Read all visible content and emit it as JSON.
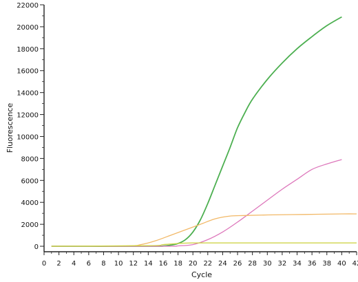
{
  "chart_data": {
    "type": "line",
    "xlabel": "Cycle",
    "ylabel": "Fluorescence",
    "xlim": [
      0,
      42
    ],
    "ylim": [
      -500,
      22000
    ],
    "x_ticks": [
      0,
      2,
      4,
      6,
      8,
      10,
      12,
      14,
      16,
      18,
      20,
      22,
      24,
      26,
      28,
      30,
      32,
      34,
      36,
      38,
      40,
      42
    ],
    "x_tick_labels": [
      "0",
      "2",
      "4",
      "6",
      "8",
      "10",
      "12",
      "14",
      "16",
      "18",
      "20",
      "22",
      "24",
      "26",
      "28",
      "30",
      "32",
      "34",
      "36",
      "38",
      "40",
      "42"
    ],
    "y_ticks": [
      0,
      2000,
      4000,
      6000,
      8000,
      10000,
      12000,
      14000,
      16000,
      18000,
      20000,
      22000
    ],
    "y_tick_labels": [
      "0",
      "2000",
      "4000",
      "6000",
      "8000",
      "10000",
      "12000",
      "14000",
      "16000",
      "18000",
      "20000",
      "22000"
    ],
    "grid": false,
    "series": [
      {
        "color": "#4caf50",
        "points": [
          [
            1,
            0
          ],
          [
            14,
            0
          ],
          [
            16,
            20
          ],
          [
            17,
            100
          ],
          [
            18,
            250
          ],
          [
            19,
            600
          ],
          [
            20,
            1300
          ],
          [
            21,
            2400
          ],
          [
            22,
            3900
          ],
          [
            23,
            5600
          ],
          [
            24,
            7300
          ],
          [
            25,
            9000
          ],
          [
            26,
            10800
          ],
          [
            27,
            12200
          ],
          [
            28,
            13400
          ],
          [
            30,
            15200
          ],
          [
            32,
            16700
          ],
          [
            34,
            18000
          ],
          [
            36,
            19100
          ],
          [
            38,
            20100
          ],
          [
            40,
            20900
          ]
        ]
      },
      {
        "color": "#dd77bb",
        "points": [
          [
            1,
            0
          ],
          [
            16,
            0
          ],
          [
            18,
            30
          ],
          [
            20,
            150
          ],
          [
            22,
            600
          ],
          [
            24,
            1300
          ],
          [
            26,
            2200
          ],
          [
            28,
            3200
          ],
          [
            30,
            4200
          ],
          [
            32,
            5200
          ],
          [
            34,
            6100
          ],
          [
            36,
            7000
          ],
          [
            38,
            7500
          ],
          [
            40,
            7900
          ]
        ]
      },
      {
        "color": "#f2b866",
        "points": [
          [
            1,
            0
          ],
          [
            11,
            30
          ],
          [
            13,
            150
          ],
          [
            15,
            500
          ],
          [
            17,
            1000
          ],
          [
            19,
            1500
          ],
          [
            21,
            2000
          ],
          [
            23,
            2500
          ],
          [
            25,
            2750
          ],
          [
            27,
            2800
          ],
          [
            30,
            2850
          ],
          [
            35,
            2900
          ],
          [
            40,
            2950
          ],
          [
            42,
            2950
          ]
        ]
      },
      {
        "color": "#cfd44a",
        "points": [
          [
            1,
            0
          ],
          [
            14,
            50
          ],
          [
            16,
            150
          ],
          [
            18,
            250
          ],
          [
            20,
            300
          ],
          [
            25,
            300
          ],
          [
            30,
            300
          ],
          [
            35,
            300
          ],
          [
            40,
            300
          ],
          [
            42,
            300
          ]
        ]
      }
    ]
  }
}
